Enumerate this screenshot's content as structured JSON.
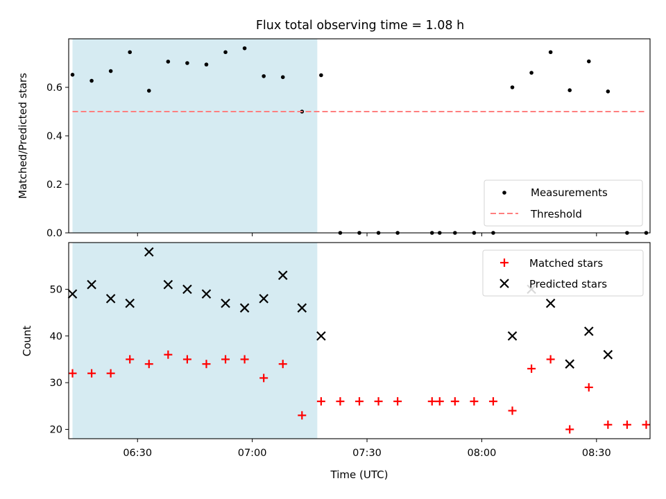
{
  "chart_data": {
    "title": "Flux total observing time = 1.08 h",
    "xlabel": "Time (UTC)",
    "x_unit": "UTC time",
    "x_range": [
      "06:12",
      "08:44"
    ],
    "x_ticks": [
      "06:30",
      "07:00",
      "07:30",
      "08:00",
      "08:30"
    ],
    "shaded_interval": {
      "start": "06:13",
      "end": "07:17",
      "color": "#add8e6"
    },
    "panels": [
      {
        "type": "scatter",
        "ylabel": "Matched/Predicted stars",
        "ylim": [
          0.0,
          0.8
        ],
        "yticks": [
          "0.0",
          "0.2",
          "0.4",
          "0.6"
        ],
        "legend_position": "bottom-right",
        "series": [
          {
            "name": "Measurements",
            "marker": "dot",
            "color": "#000000",
            "points": [
              {
                "x": "06:13",
                "y": 0.652
              },
              {
                "x": "06:18",
                "y": 0.627
              },
              {
                "x": "06:23",
                "y": 0.667
              },
              {
                "x": "06:28",
                "y": 0.745
              },
              {
                "x": "06:33",
                "y": 0.586
              },
              {
                "x": "06:38",
                "y": 0.706
              },
              {
                "x": "06:43",
                "y": 0.7
              },
              {
                "x": "06:48",
                "y": 0.694
              },
              {
                "x": "06:53",
                "y": 0.745
              },
              {
                "x": "06:58",
                "y": 0.761
              },
              {
                "x": "07:03",
                "y": 0.646
              },
              {
                "x": "07:08",
                "y": 0.642
              },
              {
                "x": "07:13",
                "y": 0.5
              },
              {
                "x": "07:18",
                "y": 0.65
              },
              {
                "x": "07:23",
                "y": 0.0
              },
              {
                "x": "07:28",
                "y": 0.0
              },
              {
                "x": "07:33",
                "y": 0.0
              },
              {
                "x": "07:38",
                "y": 0.0
              },
              {
                "x": "07:47",
                "y": 0.0
              },
              {
                "x": "07:49",
                "y": 0.0
              },
              {
                "x": "07:53",
                "y": 0.0
              },
              {
                "x": "07:58",
                "y": 0.0
              },
              {
                "x": "08:03",
                "y": 0.0
              },
              {
                "x": "08:08",
                "y": 0.6
              },
              {
                "x": "08:13",
                "y": 0.66
              },
              {
                "x": "08:18",
                "y": 0.745
              },
              {
                "x": "08:23",
                "y": 0.588
              },
              {
                "x": "08:28",
                "y": 0.707
              },
              {
                "x": "08:33",
                "y": 0.583
              },
              {
                "x": "08:38",
                "y": 0.0
              },
              {
                "x": "08:43",
                "y": 0.0
              }
            ]
          },
          {
            "name": "Threshold",
            "marker": "dashed-line",
            "color": "#ff7f7f",
            "points": [
              {
                "x": "06:13",
                "y": 0.5
              },
              {
                "x": "08:43",
                "y": 0.5
              }
            ]
          }
        ]
      },
      {
        "type": "scatter",
        "ylabel": "Count",
        "ylim": [
          18,
          60
        ],
        "yticks": [
          "20",
          "30",
          "40",
          "50"
        ],
        "legend_position": "top-right",
        "series": [
          {
            "name": "Matched stars",
            "marker": "plus",
            "color": "#ff0000",
            "points": [
              {
                "x": "06:13",
                "y": 32
              },
              {
                "x": "06:18",
                "y": 32
              },
              {
                "x": "06:23",
                "y": 32
              },
              {
                "x": "06:28",
                "y": 35
              },
              {
                "x": "06:33",
                "y": 34
              },
              {
                "x": "06:38",
                "y": 36
              },
              {
                "x": "06:43",
                "y": 35
              },
              {
                "x": "06:48",
                "y": 34
              },
              {
                "x": "06:53",
                "y": 35
              },
              {
                "x": "06:58",
                "y": 35
              },
              {
                "x": "07:03",
                "y": 31
              },
              {
                "x": "07:08",
                "y": 34
              },
              {
                "x": "07:13",
                "y": 23
              },
              {
                "x": "07:18",
                "y": 26
              },
              {
                "x": "07:23",
                "y": 26
              },
              {
                "x": "07:28",
                "y": 26
              },
              {
                "x": "07:33",
                "y": 26
              },
              {
                "x": "07:38",
                "y": 26
              },
              {
                "x": "07:47",
                "y": 26
              },
              {
                "x": "07:49",
                "y": 26
              },
              {
                "x": "07:53",
                "y": 26
              },
              {
                "x": "07:58",
                "y": 26
              },
              {
                "x": "08:03",
                "y": 26
              },
              {
                "x": "08:08",
                "y": 24
              },
              {
                "x": "08:13",
                "y": 33
              },
              {
                "x": "08:18",
                "y": 35
              },
              {
                "x": "08:23",
                "y": 20
              },
              {
                "x": "08:28",
                "y": 29
              },
              {
                "x": "08:33",
                "y": 21
              },
              {
                "x": "08:38",
                "y": 21
              },
              {
                "x": "08:43",
                "y": 21
              }
            ]
          },
          {
            "name": "Predicted stars",
            "marker": "x",
            "color": "#000000",
            "points": [
              {
                "x": "06:13",
                "y": 49
              },
              {
                "x": "06:18",
                "y": 51
              },
              {
                "x": "06:23",
                "y": 48
              },
              {
                "x": "06:28",
                "y": 47
              },
              {
                "x": "06:33",
                "y": 58
              },
              {
                "x": "06:38",
                "y": 51
              },
              {
                "x": "06:43",
                "y": 50
              },
              {
                "x": "06:48",
                "y": 49
              },
              {
                "x": "06:53",
                "y": 47
              },
              {
                "x": "06:58",
                "y": 46
              },
              {
                "x": "07:03",
                "y": 48
              },
              {
                "x": "07:08",
                "y": 53
              },
              {
                "x": "07:13",
                "y": 46
              },
              {
                "x": "07:18",
                "y": 40
              },
              {
                "x": "08:08",
                "y": 40
              },
              {
                "x": "08:13",
                "y": 50
              },
              {
                "x": "08:18",
                "y": 47
              },
              {
                "x": "08:23",
                "y": 34
              },
              {
                "x": "08:28",
                "y": 41
              },
              {
                "x": "08:33",
                "y": 36
              }
            ]
          }
        ]
      }
    ]
  }
}
